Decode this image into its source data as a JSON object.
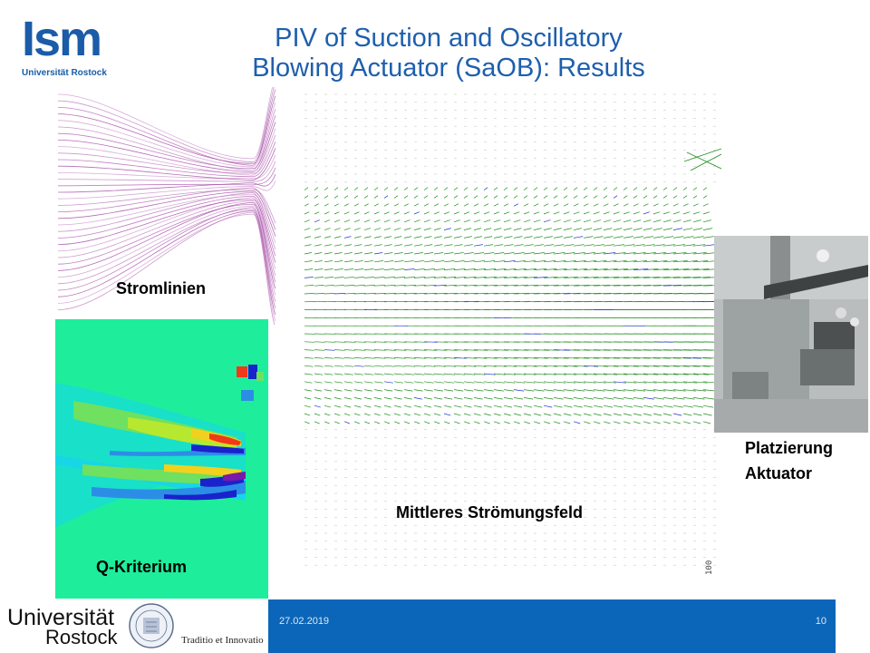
{
  "header": {
    "logo_text": "Ism",
    "logo_subtext": "Universität Rostock",
    "title_line1": "PIV of Suction and Oscillatory",
    "title_line2": "Blowing Actuator (SaOB): Results"
  },
  "figures": {
    "streamlines_label": "Stromlinien",
    "q_criterion_label": "Q-Kriterium",
    "mean_flow_label": "Mittleres Strömungsfeld",
    "actuator_label_line1": "Platzierung",
    "actuator_label_line2": "Aktuator",
    "field_corner_text": "100"
  },
  "colors": {
    "title_blue": "#1e5fae",
    "footer_blue": "#0b66b9",
    "vector_green": "#1f8f1f",
    "vector_blue": "#2233cc",
    "streamline_purple": "#a64aa6"
  },
  "footer": {
    "date": "27.02.2019",
    "page_number": "10",
    "university_line1": "Universität",
    "university_line2": "Rostock",
    "motto": "Traditio et Innovatio"
  }
}
